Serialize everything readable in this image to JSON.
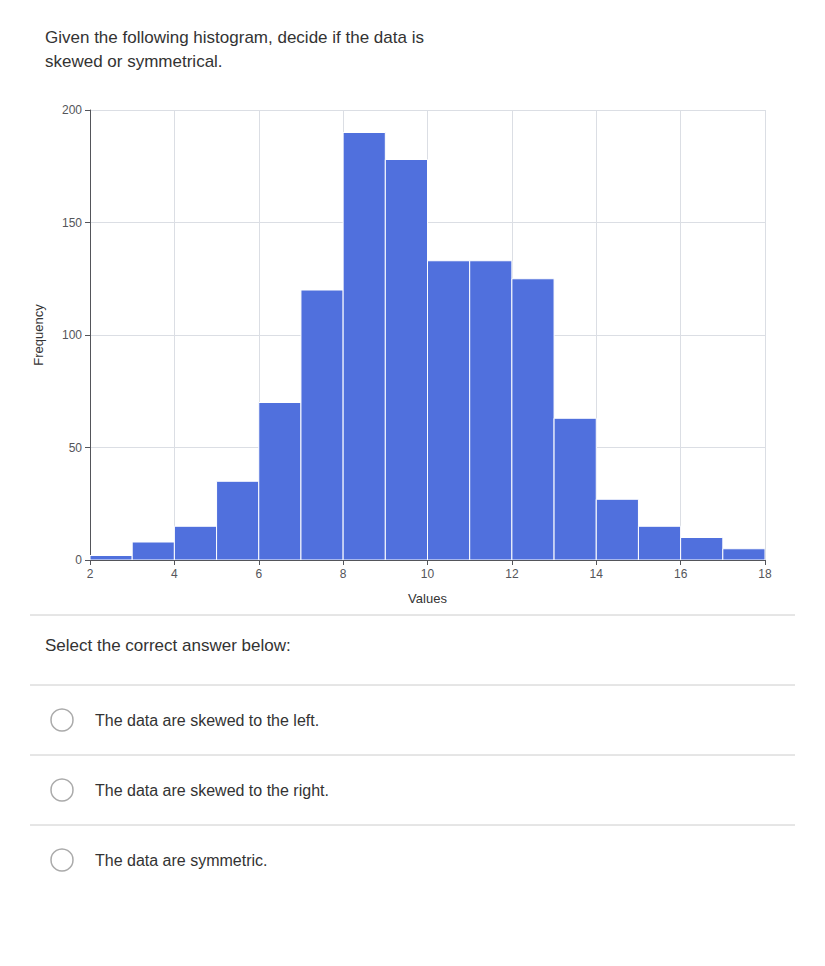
{
  "chart_data": {
    "type": "histogram",
    "title": "Given the following histogram, decide if the data is\nskewed or symmetrical.",
    "xlabel": "Values",
    "ylabel": "Frequency",
    "bins": [
      2,
      3,
      4,
      5,
      6,
      7,
      8,
      9,
      10,
      11,
      12,
      13,
      14,
      15,
      16,
      17,
      18
    ],
    "values": [
      2,
      8,
      15,
      35,
      70,
      120,
      190,
      178,
      133,
      133,
      125,
      63,
      27,
      15,
      10,
      5
    ],
    "xlim": [
      2,
      18
    ],
    "xticks": [
      2,
      4,
      6,
      8,
      10,
      12,
      14,
      16,
      18
    ],
    "ylim": [
      0,
      200
    ],
    "yticks": [
      0,
      50,
      100,
      150,
      200
    ],
    "grid": true,
    "annotations": [
      "Select the correct answer below:",
      "The data are skewed to the left.",
      "The data are skewed to the right.",
      "The data are symmetric."
    ]
  }
}
